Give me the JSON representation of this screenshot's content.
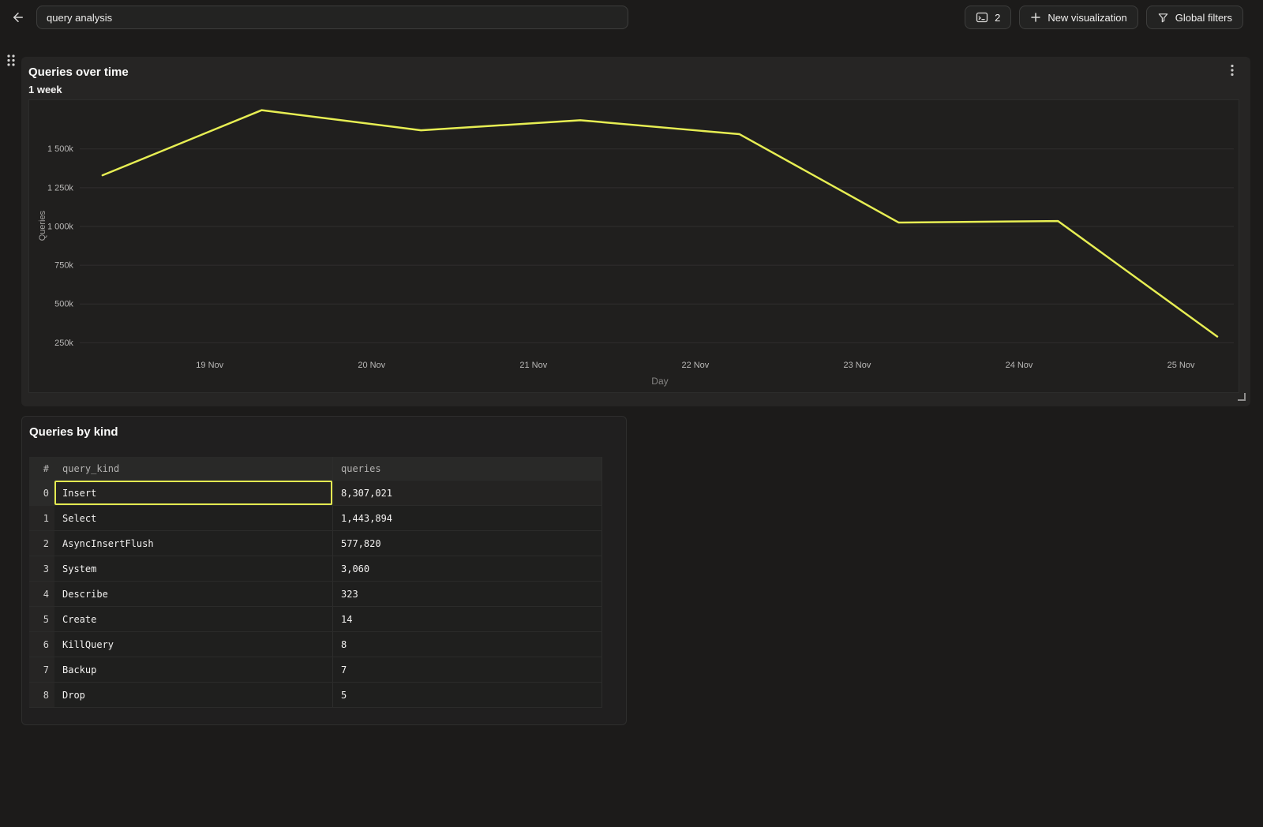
{
  "colors": {
    "line_accent": "#e7ee53",
    "selection_border": "#e4ea51",
    "page_background": "#1c1b1a",
    "panel_background": "#262524"
  },
  "topbar": {
    "title_input": {
      "value": "query analysis"
    },
    "buttons": {
      "console": {
        "icon": "sql-console",
        "label": "2"
      },
      "new_visualization": {
        "icon": "plus",
        "label": "New visualization"
      },
      "global_filters": {
        "icon": "funnel",
        "label": "Global filters"
      }
    }
  },
  "chart_panel": {
    "title": "Queries over time",
    "subtitle": "1 week"
  },
  "chart_data": {
    "type": "line",
    "title": "Queries over time",
    "subtitle": "1 week",
    "grid": true,
    "legend": false,
    "x_axis": {
      "label": "Day",
      "ticks": [
        "19 Nov",
        "20 Nov",
        "21 Nov",
        "22 Nov",
        "23 Nov",
        "24 Nov",
        "25 Nov"
      ]
    },
    "y_axis": {
      "label": "Queries",
      "unit": "k",
      "ticks": [
        {
          "label": "1 500k",
          "value_k": 1500
        },
        {
          "label": "1 250k",
          "value_k": 1250
        },
        {
          "label": "1 000k",
          "value_k": 1000
        },
        {
          "label": "750k",
          "value_k": 750
        },
        {
          "label": "500k",
          "value_k": 500
        },
        {
          "label": "250k",
          "value_k": 250
        }
      ]
    },
    "series": [
      {
        "name": "Queries",
        "color": "#e7ee53",
        "points": [
          {
            "x": "18 Nov",
            "value_k": 1330
          },
          {
            "x": "19 Nov",
            "value_k": 1750
          },
          {
            "x": "20 Nov",
            "value_k": 1620
          },
          {
            "x": "21 Nov",
            "value_k": 1685
          },
          {
            "x": "22 Nov",
            "value_k": 1595
          },
          {
            "x": "23 Nov",
            "value_k": 1025
          },
          {
            "x": "24 Nov",
            "value_k": 1035
          },
          {
            "x": "25 Nov",
            "value_k": 290
          }
        ]
      }
    ]
  },
  "table_panel": {
    "title": "Queries by kind",
    "columns": [
      "#",
      "query_kind",
      "queries"
    ],
    "selected_cell": {
      "row": 0,
      "column": "query_kind"
    },
    "rows": [
      {
        "index": "0",
        "query_kind": "Insert",
        "queries": "8,307,021",
        "highlighted": true
      },
      {
        "index": "1",
        "query_kind": "Select",
        "queries": "1,443,894"
      },
      {
        "index": "2",
        "query_kind": "AsyncInsertFlush",
        "queries": "577,820"
      },
      {
        "index": "3",
        "query_kind": "System",
        "queries": "3,060"
      },
      {
        "index": "4",
        "query_kind": "Describe",
        "queries": "323"
      },
      {
        "index": "5",
        "query_kind": "Create",
        "queries": "14"
      },
      {
        "index": "6",
        "query_kind": "KillQuery",
        "queries": "8"
      },
      {
        "index": "7",
        "query_kind": "Backup",
        "queries": "7"
      },
      {
        "index": "8",
        "query_kind": "Drop",
        "queries": "5"
      }
    ]
  }
}
